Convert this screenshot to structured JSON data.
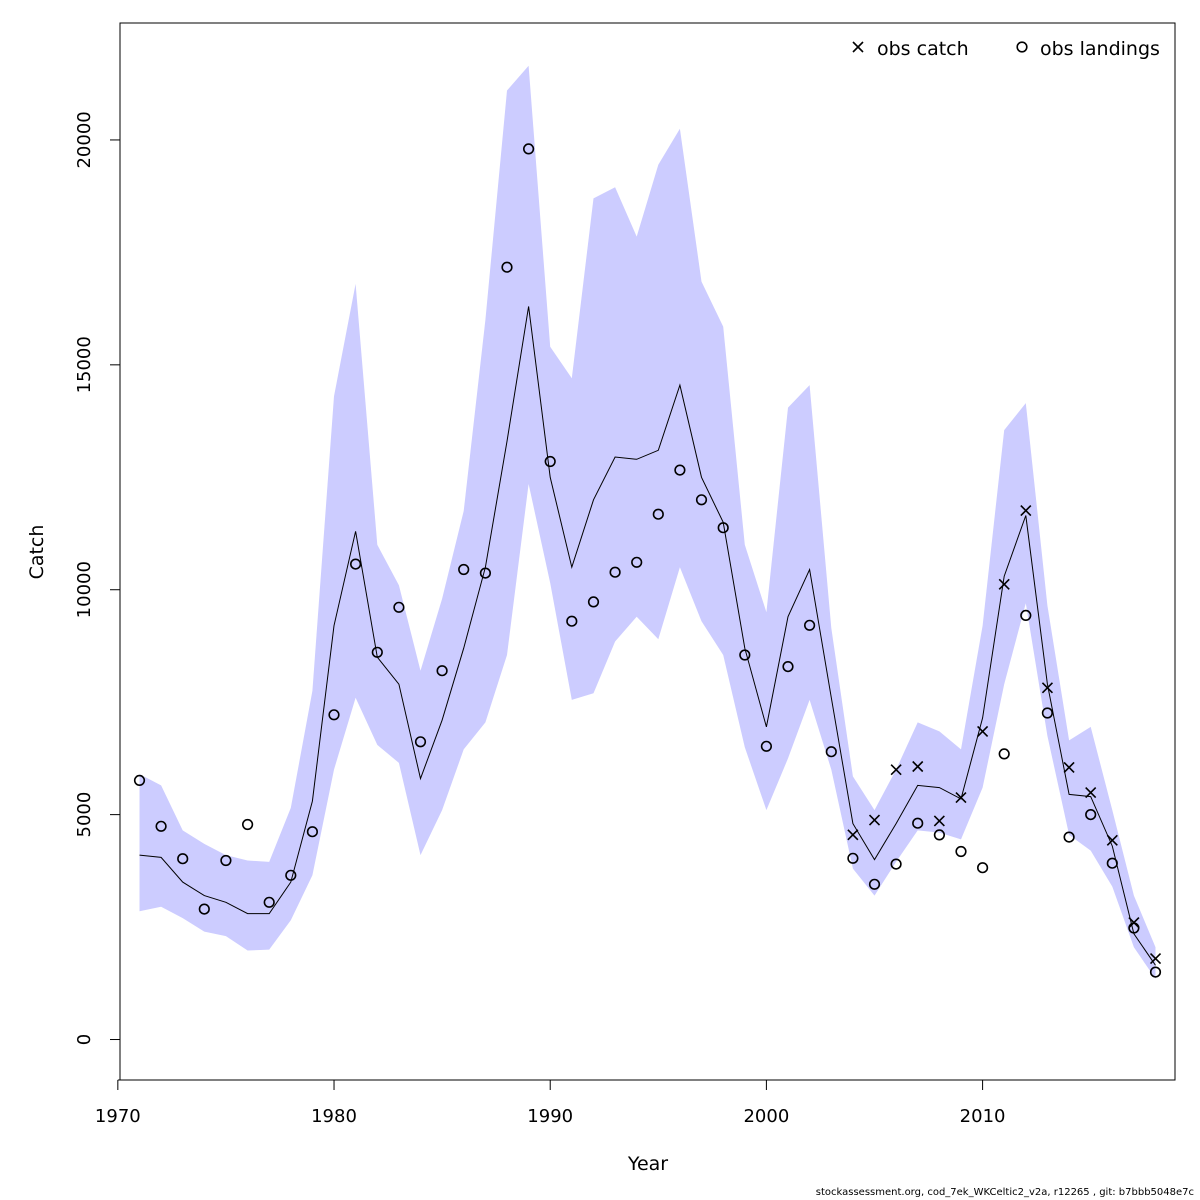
{
  "caption": "stockassessment.org, cod_7ek_WKCeltic2_v2a, r12265 , git: b7bbb5048e7c",
  "colors": {
    "band": "#ccccff",
    "line": "#000000",
    "frame": "#000000"
  },
  "chart_data": {
    "type": "line",
    "title": "",
    "xlabel": "Year",
    "ylabel": "Catch",
    "xlim": [
      1970.1,
      2018.9
    ],
    "ylim": [
      -900,
      22600
    ],
    "xticks": [
      1970,
      1980,
      1990,
      2000,
      2010
    ],
    "yticks": [
      0,
      5000,
      10000,
      15000,
      20000
    ],
    "legend": {
      "placement": "top-right",
      "entries": [
        {
          "label": "obs catch",
          "marker": "x"
        },
        {
          "label": "obs landings",
          "marker": "circle"
        }
      ]
    },
    "years": [
      1971,
      1972,
      1973,
      1974,
      1975,
      1976,
      1977,
      1978,
      1979,
      1980,
      1981,
      1982,
      1983,
      1984,
      1985,
      1986,
      1987,
      1988,
      1989,
      1990,
      1991,
      1992,
      1993,
      1994,
      1995,
      1996,
      1997,
      1998,
      1999,
      2000,
      2001,
      2002,
      2003,
      2004,
      2005,
      2006,
      2007,
      2008,
      2009,
      2010,
      2011,
      2012,
      2013,
      2014,
      2015,
      2016,
      2017,
      2018
    ],
    "estimate": [
      4100,
      4050,
      3500,
      3200,
      3050,
      2800,
      2800,
      3500,
      5300,
      9200,
      11300,
      8500,
      7900,
      5800,
      7100,
      8700,
      10500,
      13300,
      16300,
      12500,
      10500,
      12000,
      12950,
      12900,
      13100,
      14550,
      12500,
      11500,
      8700,
      6950,
      9400,
      10450,
      7600,
      4800,
      4000,
      4800,
      5650,
      5600,
      5350,
      7150,
      10300,
      11650,
      7900,
      5450,
      5400,
      4300,
      2350,
      1650
    ],
    "upper": [
      5900,
      5650,
      4650,
      4350,
      4100,
      3980,
      3950,
      5150,
      7750,
      14300,
      16800,
      11000,
      10100,
      8200,
      9800,
      11750,
      16000,
      21100,
      21650,
      15400,
      14700,
      18700,
      18950,
      17850,
      19450,
      20250,
      16850,
      15850,
      11000,
      9500,
      14050,
      14550,
      9150,
      5850,
      5100,
      6000,
      7050,
      6850,
      6450,
      9200,
      13550,
      14150,
      9650,
      6650,
      6950,
      5100,
      3200,
      2050
    ],
    "lower": [
      2850,
      2950,
      2700,
      2400,
      2300,
      1980,
      2000,
      2650,
      3650,
      6000,
      7600,
      6550,
      6150,
      4100,
      5100,
      6450,
      7050,
      8550,
      12350,
      10150,
      7550,
      7700,
      8850,
      9400,
      8900,
      10500,
      9300,
      8550,
      6500,
      5100,
      6250,
      7550,
      6000,
      3800,
      3200,
      3950,
      4650,
      4600,
      4450,
      5600,
      7900,
      9700,
      6750,
      4550,
      4200,
      3400,
      2050,
      1350
    ],
    "obs_catch": [
      {
        "x": 2004,
        "y": 4550
      },
      {
        "x": 2005,
        "y": 4880
      },
      {
        "x": 2006,
        "y": 6000
      },
      {
        "x": 2007,
        "y": 6070
      },
      {
        "x": 2008,
        "y": 4860
      },
      {
        "x": 2009,
        "y": 5380
      },
      {
        "x": 2010,
        "y": 6850
      },
      {
        "x": 2011,
        "y": 10120
      },
      {
        "x": 2012,
        "y": 11760
      },
      {
        "x": 2013,
        "y": 7820
      },
      {
        "x": 2014,
        "y": 6050
      },
      {
        "x": 2015,
        "y": 5490
      },
      {
        "x": 2016,
        "y": 4430
      },
      {
        "x": 2017,
        "y": 2600
      },
      {
        "x": 2018,
        "y": 1800
      }
    ],
    "obs_landings": [
      {
        "x": 1971,
        "y": 5760
      },
      {
        "x": 1972,
        "y": 4740
      },
      {
        "x": 1973,
        "y": 4020
      },
      {
        "x": 1974,
        "y": 2900
      },
      {
        "x": 1975,
        "y": 3980
      },
      {
        "x": 1976,
        "y": 4780
      },
      {
        "x": 1977,
        "y": 3050
      },
      {
        "x": 1978,
        "y": 3650
      },
      {
        "x": 1979,
        "y": 4620
      },
      {
        "x": 1980,
        "y": 7220
      },
      {
        "x": 1981,
        "y": 10570
      },
      {
        "x": 1982,
        "y": 8610
      },
      {
        "x": 1983,
        "y": 9610
      },
      {
        "x": 1984,
        "y": 6620
      },
      {
        "x": 1985,
        "y": 8200
      },
      {
        "x": 1986,
        "y": 10450
      },
      {
        "x": 1987,
        "y": 10370
      },
      {
        "x": 1988,
        "y": 17170
      },
      {
        "x": 1989,
        "y": 19800
      },
      {
        "x": 1990,
        "y": 12850
      },
      {
        "x": 1991,
        "y": 9300
      },
      {
        "x": 1992,
        "y": 9730
      },
      {
        "x": 1993,
        "y": 10390
      },
      {
        "x": 1994,
        "y": 10610
      },
      {
        "x": 1995,
        "y": 11680
      },
      {
        "x": 1996,
        "y": 12660
      },
      {
        "x": 1997,
        "y": 12000
      },
      {
        "x": 1998,
        "y": 11380
      },
      {
        "x": 1999,
        "y": 8550
      },
      {
        "x": 2000,
        "y": 6520
      },
      {
        "x": 2001,
        "y": 8290
      },
      {
        "x": 2002,
        "y": 9210
      },
      {
        "x": 2003,
        "y": 6400
      },
      {
        "x": 2004,
        "y": 4030
      },
      {
        "x": 2005,
        "y": 3450
      },
      {
        "x": 2006,
        "y": 3900
      },
      {
        "x": 2007,
        "y": 4810
      },
      {
        "x": 2008,
        "y": 4550
      },
      {
        "x": 2009,
        "y": 4180
      },
      {
        "x": 2010,
        "y": 3820
      },
      {
        "x": 2011,
        "y": 6350
      },
      {
        "x": 2012,
        "y": 9430
      },
      {
        "x": 2013,
        "y": 7260
      },
      {
        "x": 2014,
        "y": 4500
      },
      {
        "x": 2015,
        "y": 5000
      },
      {
        "x": 2016,
        "y": 3920
      },
      {
        "x": 2017,
        "y": 2480
      },
      {
        "x": 2018,
        "y": 1500
      }
    ]
  }
}
